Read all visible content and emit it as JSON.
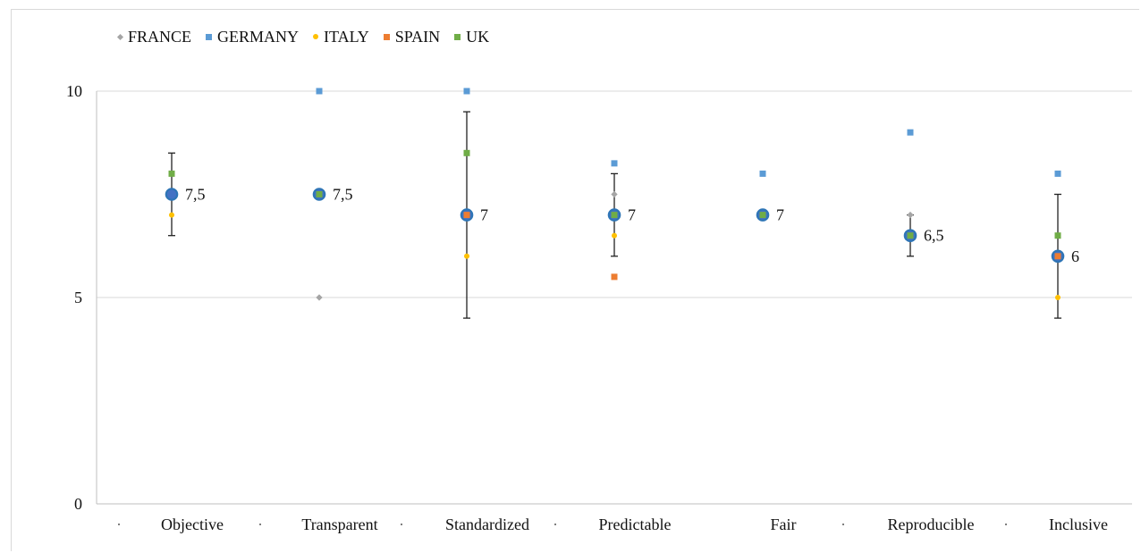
{
  "chart_data": {
    "type": "scatter",
    "categories": [
      "Objective",
      "Transparent",
      "Standardized",
      "Predictable",
      "Fair",
      "Reproducible",
      "Inclusive"
    ],
    "ylim": [
      0,
      10
    ],
    "y_ticks": [
      "0",
      "5",
      "10"
    ],
    "grid": true,
    "legend_position": "top-left",
    "series": [
      {
        "name": "FRANCE",
        "marker": "diamond",
        "color": "#a5a5a5",
        "values": [
          null,
          5,
          null,
          7.5,
          null,
          7,
          null
        ]
      },
      {
        "name": "GERMANY",
        "marker": "square",
        "color": "#5b9bd5",
        "values": [
          null,
          10,
          10,
          8.25,
          8,
          9,
          8
        ]
      },
      {
        "name": "ITALY",
        "marker": "circle",
        "color": "#ffc000",
        "values": [
          7,
          null,
          6,
          6.5,
          null,
          null,
          5
        ]
      },
      {
        "name": "SPAIN",
        "marker": "square",
        "color": "#ed7d31",
        "values": [
          null,
          null,
          7,
          5.5,
          null,
          null,
          6
        ]
      },
      {
        "name": "UK",
        "marker": "square",
        "color": "#70ad47",
        "values": [
          8,
          7.5,
          8.5,
          7,
          7,
          6.5,
          6.5
        ]
      }
    ],
    "median": {
      "color": "#2e75b6",
      "fill": "#4472c4",
      "values": [
        7.5,
        7.5,
        7,
        7,
        7,
        6.5,
        6
      ],
      "labels": [
        "7,5",
        "7,5",
        "7",
        "7",
        "7",
        "6,5",
        "6"
      ]
    },
    "error_bars": [
      {
        "low": 6.5,
        "high": 8.5
      },
      null,
      {
        "low": 4.5,
        "high": 9.5
      },
      {
        "low": 6,
        "high": 8
      },
      null,
      {
        "low": 6,
        "high": 7
      },
      {
        "low": 4.5,
        "high": 7.5
      }
    ]
  }
}
